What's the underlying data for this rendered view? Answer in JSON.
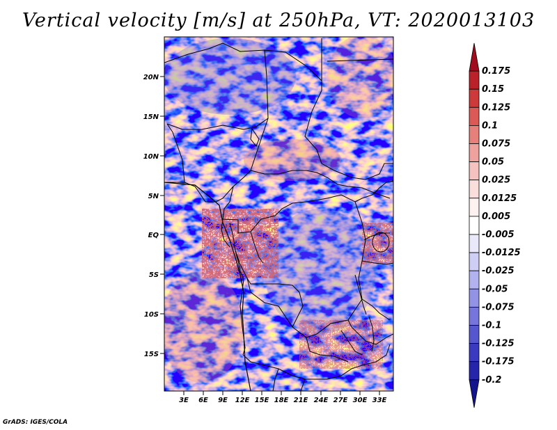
{
  "title": "Vertical velocity [m/s] at 250hPa, VT: 2020013103",
  "footer": "GrADS: IGES/COLA",
  "map": {
    "lat_labels": [
      "20N",
      "15N",
      "10N",
      "5N",
      "EQ",
      "5S",
      "10S",
      "15S"
    ],
    "lon_labels": [
      "3E",
      "6E",
      "9E",
      "12E",
      "15E",
      "18E",
      "21E",
      "24E",
      "27E",
      "30E",
      "33E"
    ]
  },
  "colorbar": {
    "levels": [
      "0.175",
      "0.15",
      "0.125",
      "0.1",
      "0.075",
      "0.05",
      "0.025",
      "0.0125",
      "0.005",
      "-0.005",
      "-0.0125",
      "-0.025",
      "-0.05",
      "-0.075",
      "-0.1",
      "-0.125",
      "-0.175",
      "-0.2"
    ],
    "colors": [
      "#a00d1e",
      "#bb2129",
      "#cc3a3a",
      "#db5a55",
      "#e6807a",
      "#eea29d",
      "#f5c3bf",
      "#fadedb",
      "#fdf2f1",
      "#ffffff",
      "#e9e9fb",
      "#cfcff6",
      "#b2b2ef",
      "#9393e6",
      "#7575dc",
      "#5656cf",
      "#3a3ac0",
      "#2525ac",
      "#14148f"
    ]
  }
}
